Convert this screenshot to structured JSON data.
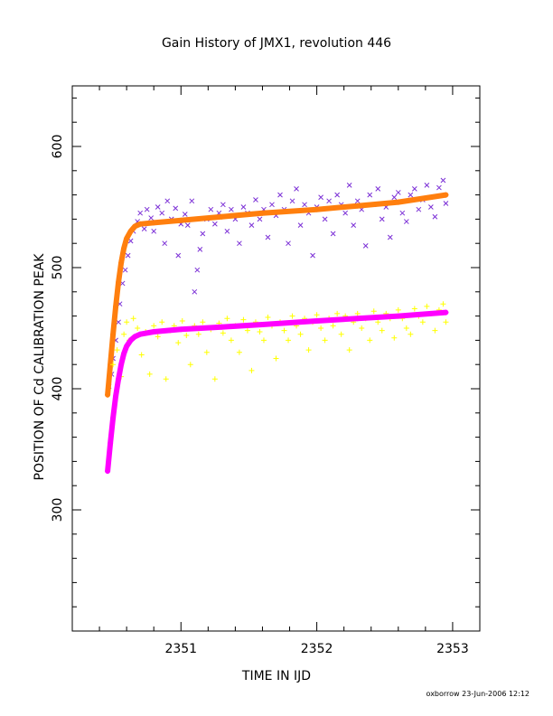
{
  "chart_data": {
    "type": "scatter",
    "title": "Gain History of JMX1, revolution 446",
    "xlabel": "TIME IN IJD",
    "ylabel": "POSITION OF Cd CALIBRATION PEAK",
    "xlim": [
      2350.2,
      2353.2
    ],
    "ylim": [
      200,
      650
    ],
    "xticks": [
      2351,
      2352,
      2353
    ],
    "yticks": [
      300,
      400,
      500,
      600
    ],
    "grid": false,
    "footer": "oxborrow 23-Jun-2006 12:12",
    "series": [
      {
        "kind": "scatter-x",
        "color": "#7b2fd6",
        "points": [
          [
            2350.47,
            402
          ],
          [
            2350.49,
            412
          ],
          [
            2350.5,
            425
          ],
          [
            2350.52,
            440
          ],
          [
            2350.54,
            455
          ],
          [
            2350.55,
            470
          ],
          [
            2350.57,
            487
          ],
          [
            2350.59,
            498
          ],
          [
            2350.61,
            510
          ],
          [
            2350.63,
            522
          ],
          [
            2350.65,
            530
          ],
          [
            2350.68,
            538
          ],
          [
            2350.7,
            545
          ],
          [
            2350.73,
            532
          ],
          [
            2350.75,
            548
          ],
          [
            2350.78,
            541
          ],
          [
            2350.8,
            530
          ],
          [
            2350.83,
            550
          ],
          [
            2350.86,
            545
          ],
          [
            2350.88,
            520
          ],
          [
            2350.9,
            555
          ],
          [
            2350.93,
            540
          ],
          [
            2350.96,
            549
          ],
          [
            2350.98,
            510
          ],
          [
            2351.0,
            536
          ],
          [
            2351.03,
            544
          ],
          [
            2351.05,
            535
          ],
          [
            2351.08,
            555
          ],
          [
            2351.1,
            480
          ],
          [
            2351.12,
            498
          ],
          [
            2351.14,
            515
          ],
          [
            2351.16,
            528
          ],
          [
            2351.19,
            540
          ],
          [
            2351.22,
            548
          ],
          [
            2351.25,
            536
          ],
          [
            2351.28,
            545
          ],
          [
            2351.31,
            552
          ],
          [
            2351.34,
            530
          ],
          [
            2351.37,
            548
          ],
          [
            2351.4,
            540
          ],
          [
            2351.43,
            520
          ],
          [
            2351.46,
            550
          ],
          [
            2351.49,
            545
          ],
          [
            2351.52,
            535
          ],
          [
            2351.55,
            556
          ],
          [
            2351.58,
            540
          ],
          [
            2351.61,
            548
          ],
          [
            2351.64,
            525
          ],
          [
            2351.67,
            552
          ],
          [
            2351.7,
            543
          ],
          [
            2351.73,
            560
          ],
          [
            2351.76,
            548
          ],
          [
            2351.79,
            520
          ],
          [
            2351.82,
            555
          ],
          [
            2351.85,
            565
          ],
          [
            2351.88,
            535
          ],
          [
            2351.91,
            552
          ],
          [
            2351.94,
            545
          ],
          [
            2351.97,
            510
          ],
          [
            2352.0,
            550
          ],
          [
            2352.03,
            558
          ],
          [
            2352.06,
            540
          ],
          [
            2352.09,
            555
          ],
          [
            2352.12,
            528
          ],
          [
            2352.15,
            560
          ],
          [
            2352.18,
            552
          ],
          [
            2352.21,
            545
          ],
          [
            2352.24,
            568
          ],
          [
            2352.27,
            535
          ],
          [
            2352.3,
            555
          ],
          [
            2352.33,
            548
          ],
          [
            2352.36,
            518
          ],
          [
            2352.39,
            560
          ],
          [
            2352.42,
            552
          ],
          [
            2352.45,
            565
          ],
          [
            2352.48,
            540
          ],
          [
            2352.51,
            550
          ],
          [
            2352.54,
            525
          ],
          [
            2352.57,
            558
          ],
          [
            2352.6,
            562
          ],
          [
            2352.63,
            545
          ],
          [
            2352.66,
            538
          ],
          [
            2352.69,
            560
          ],
          [
            2352.72,
            565
          ],
          [
            2352.75,
            548
          ],
          [
            2352.78,
            556
          ],
          [
            2352.81,
            568
          ],
          [
            2352.84,
            550
          ],
          [
            2352.87,
            542
          ],
          [
            2352.9,
            566
          ],
          [
            2352.93,
            572
          ],
          [
            2352.95,
            553
          ]
        ]
      },
      {
        "kind": "curve",
        "color": "#ff7f0e",
        "points": [
          [
            2350.46,
            395
          ],
          [
            2350.48,
            420
          ],
          [
            2350.5,
            445
          ],
          [
            2350.52,
            468
          ],
          [
            2350.54,
            488
          ],
          [
            2350.56,
            504
          ],
          [
            2350.58,
            516
          ],
          [
            2350.6,
            524
          ],
          [
            2350.63,
            530
          ],
          [
            2350.66,
            534
          ],
          [
            2350.7,
            536
          ],
          [
            2350.8,
            537
          ],
          [
            2351.0,
            539
          ],
          [
            2351.3,
            542
          ],
          [
            2351.6,
            545
          ],
          [
            2352.0,
            548
          ],
          [
            2352.3,
            551
          ],
          [
            2352.6,
            554
          ],
          [
            2352.95,
            560
          ]
        ]
      },
      {
        "kind": "scatter-plus",
        "color": "#ffff00",
        "points": [
          [
            2350.5,
            420
          ],
          [
            2350.53,
            432
          ],
          [
            2350.56,
            410
          ],
          [
            2350.58,
            445
          ],
          [
            2350.6,
            455
          ],
          [
            2350.62,
            440
          ],
          [
            2350.65,
            458
          ],
          [
            2350.68,
            450
          ],
          [
            2350.71,
            428
          ],
          [
            2350.74,
            447
          ],
          [
            2350.77,
            412
          ],
          [
            2350.8,
            452
          ],
          [
            2350.83,
            443
          ],
          [
            2350.86,
            455
          ],
          [
            2350.89,
            408
          ],
          [
            2350.92,
            448
          ],
          [
            2350.95,
            452
          ],
          [
            2350.98,
            438
          ],
          [
            2351.01,
            456
          ],
          [
            2351.04,
            444
          ],
          [
            2351.07,
            420
          ],
          [
            2351.1,
            452
          ],
          [
            2351.13,
            445
          ],
          [
            2351.16,
            455
          ],
          [
            2351.19,
            430
          ],
          [
            2351.22,
            449
          ],
          [
            2351.25,
            408
          ],
          [
            2351.28,
            454
          ],
          [
            2351.31,
            446
          ],
          [
            2351.34,
            458
          ],
          [
            2351.37,
            440
          ],
          [
            2351.4,
            452
          ],
          [
            2351.43,
            430
          ],
          [
            2351.46,
            457
          ],
          [
            2351.49,
            448
          ],
          [
            2351.52,
            415
          ],
          [
            2351.55,
            455
          ],
          [
            2351.58,
            447
          ],
          [
            2351.61,
            440
          ],
          [
            2351.64,
            459
          ],
          [
            2351.67,
            452
          ],
          [
            2351.7,
            425
          ],
          [
            2351.73,
            455
          ],
          [
            2351.76,
            448
          ],
          [
            2351.79,
            440
          ],
          [
            2351.82,
            460
          ],
          [
            2351.85,
            452
          ],
          [
            2351.88,
            445
          ],
          [
            2351.91,
            458
          ],
          [
            2351.94,
            432
          ],
          [
            2351.97,
            455
          ],
          [
            2352.0,
            461
          ],
          [
            2352.03,
            450
          ],
          [
            2352.06,
            440
          ],
          [
            2352.09,
            458
          ],
          [
            2352.12,
            452
          ],
          [
            2352.15,
            462
          ],
          [
            2352.18,
            445
          ],
          [
            2352.21,
            460
          ],
          [
            2352.24,
            432
          ],
          [
            2352.27,
            455
          ],
          [
            2352.3,
            462
          ],
          [
            2352.33,
            450
          ],
          [
            2352.36,
            458
          ],
          [
            2352.39,
            440
          ],
          [
            2352.42,
            464
          ],
          [
            2352.45,
            455
          ],
          [
            2352.48,
            448
          ],
          [
            2352.51,
            462
          ],
          [
            2352.54,
            458
          ],
          [
            2352.57,
            442
          ],
          [
            2352.6,
            465
          ],
          [
            2352.63,
            458
          ],
          [
            2352.66,
            450
          ],
          [
            2352.69,
            445
          ],
          [
            2352.72,
            466
          ],
          [
            2352.75,
            460
          ],
          [
            2352.78,
            455
          ],
          [
            2352.81,
            468
          ],
          [
            2352.84,
            462
          ],
          [
            2352.87,
            448
          ],
          [
            2352.9,
            465
          ],
          [
            2352.93,
            470
          ],
          [
            2352.95,
            455
          ]
        ]
      },
      {
        "kind": "curve",
        "color": "#ff00ff",
        "points": [
          [
            2350.46,
            332
          ],
          [
            2350.48,
            355
          ],
          [
            2350.5,
            376
          ],
          [
            2350.52,
            394
          ],
          [
            2350.54,
            408
          ],
          [
            2350.56,
            420
          ],
          [
            2350.58,
            429
          ],
          [
            2350.6,
            435
          ],
          [
            2350.63,
            440
          ],
          [
            2350.66,
            443
          ],
          [
            2350.7,
            445
          ],
          [
            2350.8,
            447
          ],
          [
            2351.0,
            449
          ],
          [
            2351.3,
            451
          ],
          [
            2351.6,
            453
          ],
          [
            2352.0,
            456
          ],
          [
            2352.3,
            458
          ],
          [
            2352.6,
            460
          ],
          [
            2352.95,
            463
          ]
        ]
      }
    ]
  }
}
